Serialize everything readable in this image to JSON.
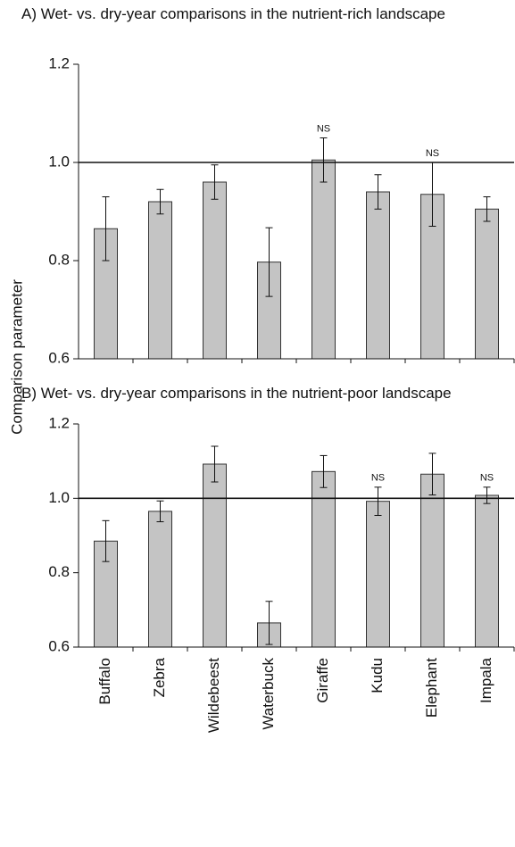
{
  "chart_data": [
    {
      "type": "bar",
      "title": "A) Wet- vs. dry-year comparisons in the nutrient-rich landscape",
      "ylabel": "Comparison parameter",
      "categories": [
        "Buffalo",
        "Zebra",
        "Wildebeest",
        "Waterbuck",
        "Giraffe",
        "Kudu",
        "Elephant",
        "Impala"
      ],
      "values": [
        0.865,
        0.92,
        0.96,
        0.797,
        1.005,
        0.94,
        0.935,
        0.905
      ],
      "errors": [
        0.065,
        0.025,
        0.035,
        0.07,
        0.045,
        0.035,
        0.065,
        0.025
      ],
      "annotations": [
        {
          "x": "Giraffe",
          "text": "NS"
        },
        {
          "x": "Elephant",
          "text": "NS"
        }
      ],
      "hline": 1.0,
      "color": "#c4c4c4",
      "ylim": [
        0.6,
        1.2
      ],
      "yticks": [
        0.6,
        0.8,
        {
          "value": 1.0,
          "label": "1.0"
        },
        1.2
      ]
    },
    {
      "type": "bar",
      "title": "B) Wet- vs. dry-year comparisons in the nutrient-poor landscape",
      "categories": [
        "Buffalo",
        "Zebra",
        "Wildebeest",
        "Waterbuck",
        "Giraffe",
        "Kudu",
        "Elephant",
        "Impala"
      ],
      "values": [
        0.885,
        0.965,
        1.092,
        0.665,
        1.072,
        0.992,
        1.065,
        1.008
      ],
      "errors": [
        0.055,
        0.028,
        0.048,
        0.058,
        0.043,
        0.038,
        0.056,
        0.022
      ],
      "annotations": [
        {
          "x": "Kudu",
          "text": "NS"
        },
        {
          "x": "Impala",
          "text": "NS"
        }
      ],
      "hline": 1.0,
      "color": "#c4c4c4",
      "ylim": [
        0.6,
        1.2
      ],
      "yticks": [
        0.6,
        0.8,
        {
          "value": 1.0,
          "label": "1.0"
        },
        1.2
      ]
    }
  ]
}
